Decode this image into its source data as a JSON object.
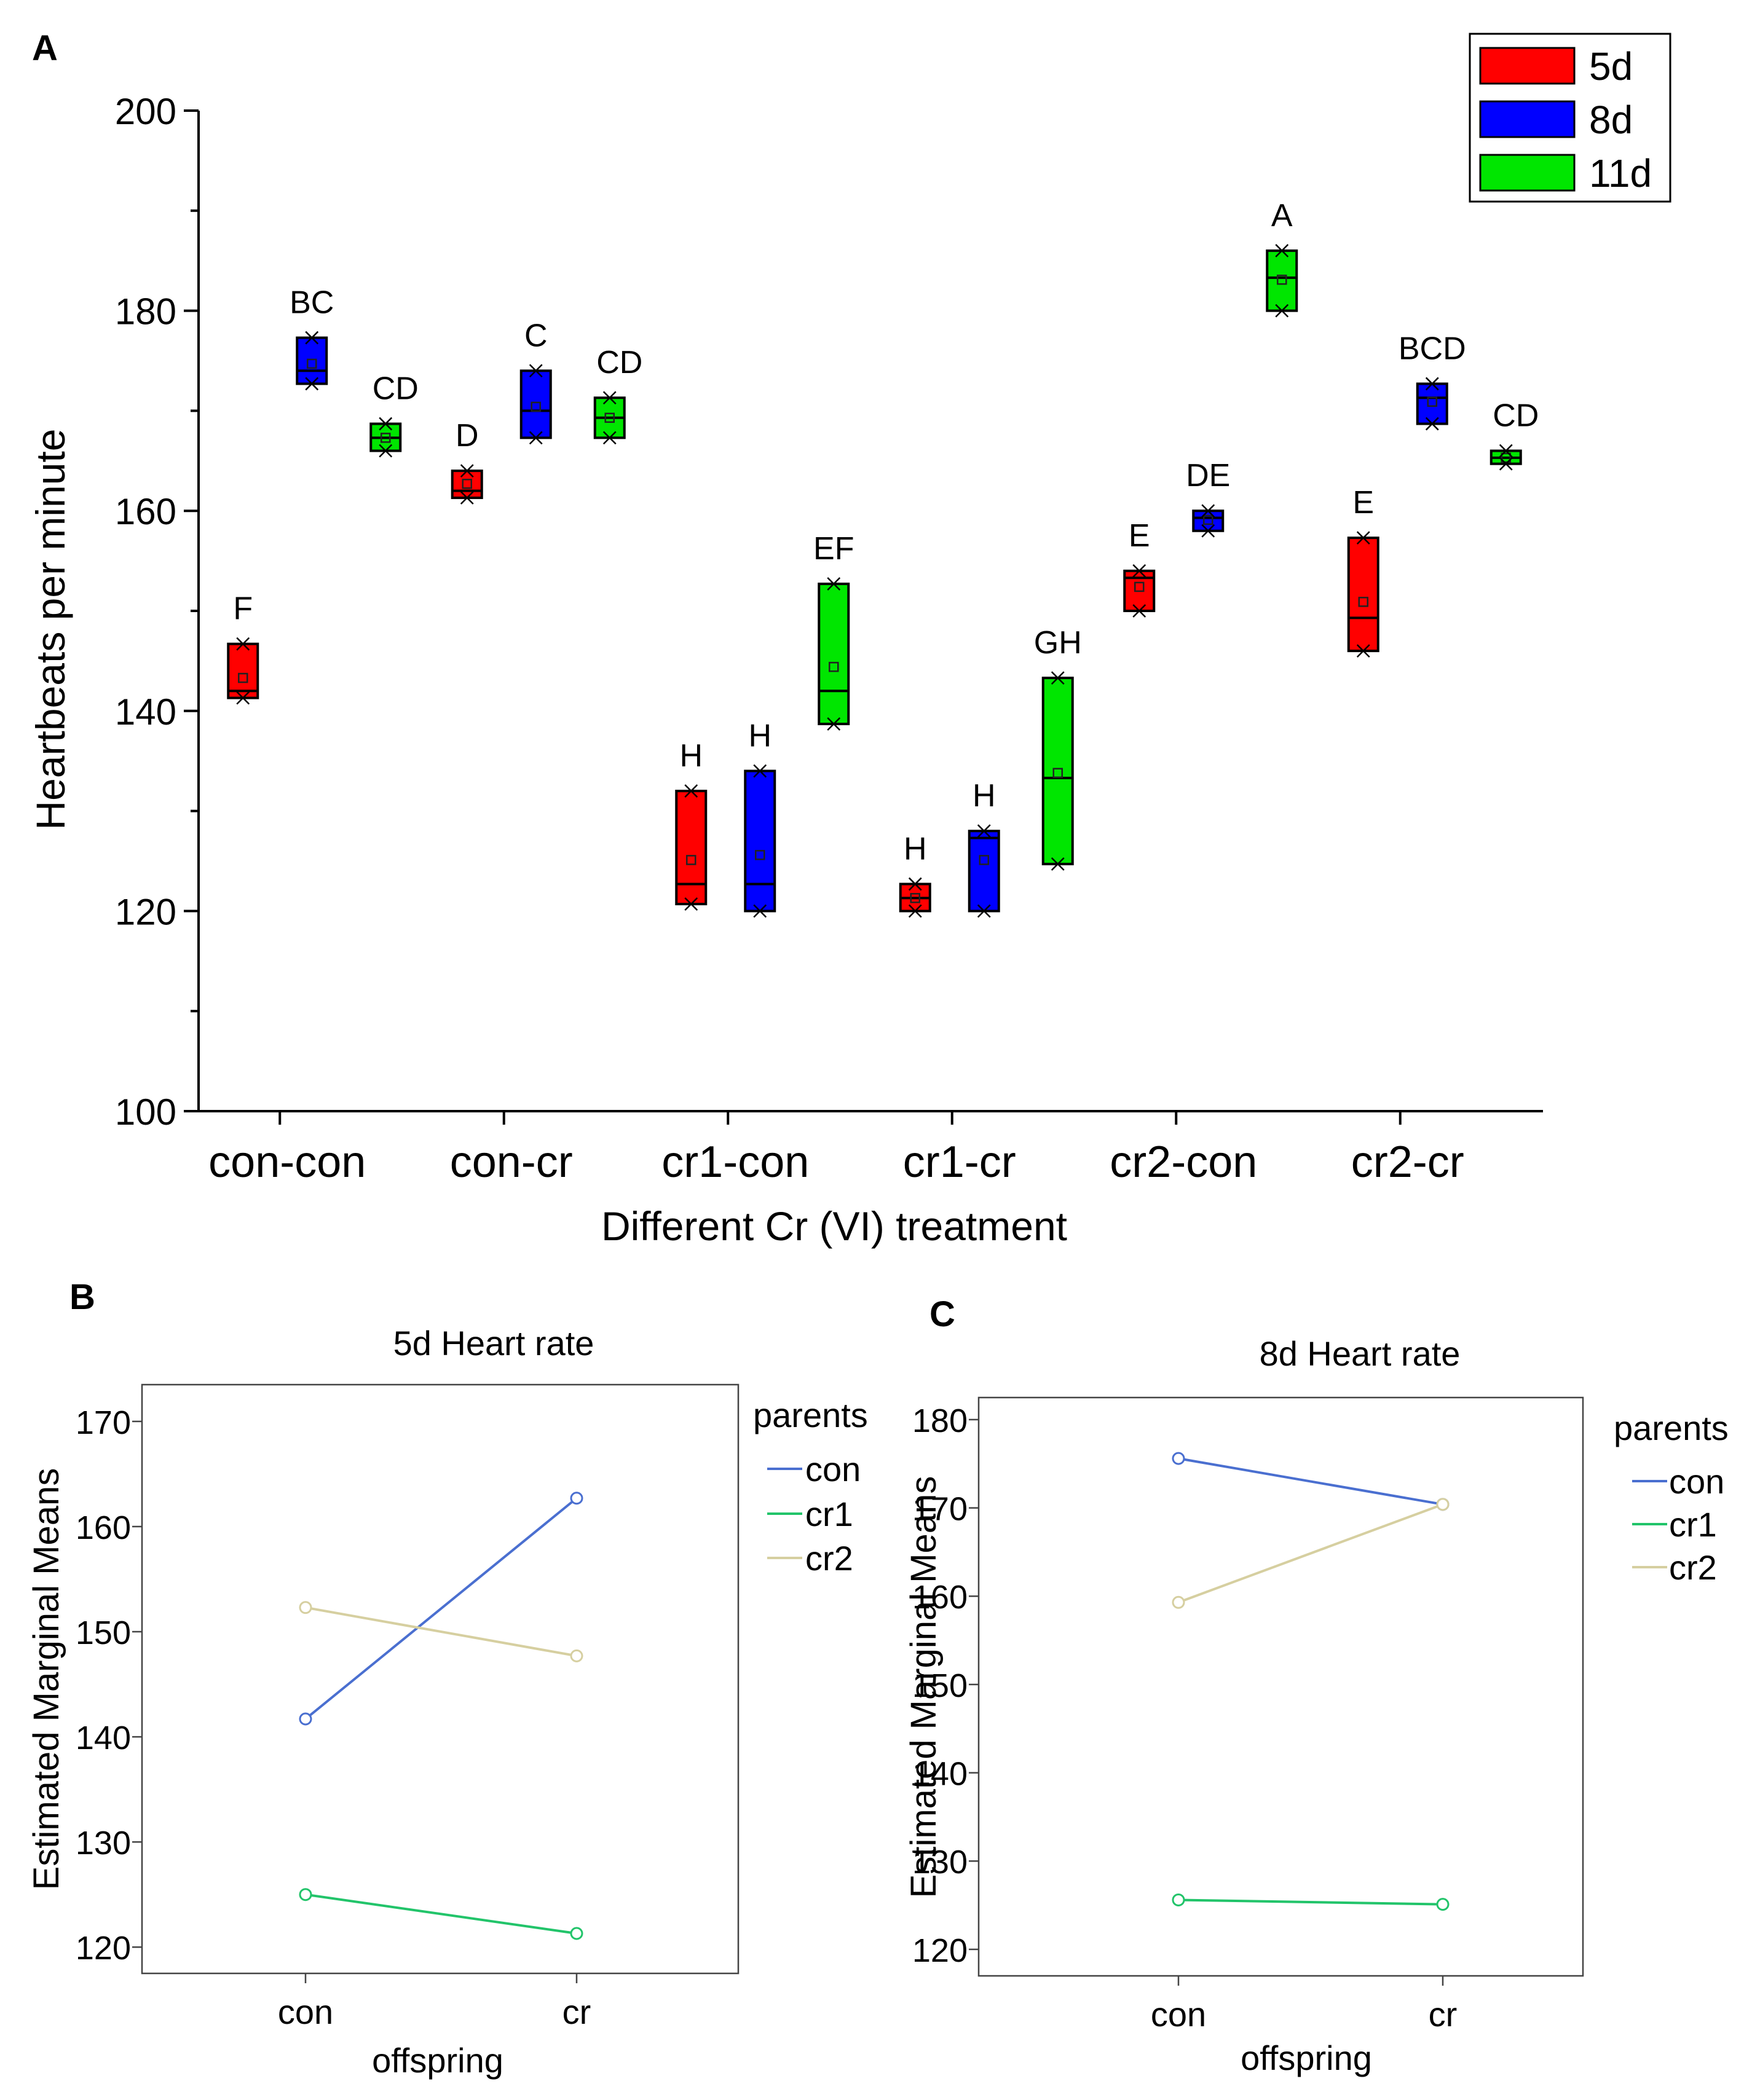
{
  "figure": {
    "panel_a_label": "A",
    "panel_b_label": "B",
    "panel_c_label": "C"
  },
  "colors": {
    "5d": "#ff0000",
    "8d": "#0000ff",
    "11d": "#00e600",
    "con": "#4a6fd0",
    "cr1": "#22c46a",
    "cr2": "#d6cfa0"
  },
  "chart_data": [
    {
      "type": "box",
      "panel": "A",
      "title": "",
      "xlabel": "Different Cr (VI) treatment",
      "ylabel": "Heartbeats per minute",
      "ylim": [
        100,
        200
      ],
      "yticks": [
        100,
        120,
        140,
        160,
        180,
        200
      ],
      "categories": [
        "con-con",
        "con-cr",
        "cr1-con",
        "cr1-cr",
        "cr2-con",
        "cr2-cr"
      ],
      "legend": {
        "position": "top-right",
        "entries": [
          "5d",
          "8d",
          "11d"
        ]
      },
      "series": [
        {
          "name": "5d",
          "boxes": [
            {
              "q1": 141.3,
              "median": 142.0,
              "q3": 146.7,
              "mean": 143.3,
              "min": 141.3,
              "max": 146.7,
              "label": "F"
            },
            {
              "q1": 161.3,
              "median": 162.0,
              "q3": 164.0,
              "mean": 162.7,
              "min": 161.3,
              "max": 164.0,
              "label": "D"
            },
            {
              "q1": 120.7,
              "median": 122.7,
              "q3": 132.0,
              "mean": 125.1,
              "min": 120.7,
              "max": 132.0,
              "label": "H"
            },
            {
              "q1": 120.0,
              "median": 121.3,
              "q3": 122.7,
              "mean": 121.3,
              "min": 120.0,
              "max": 122.7,
              "label": "H"
            },
            {
              "q1": 150.0,
              "median": 153.3,
              "q3": 154.0,
              "mean": 152.4,
              "min": 150.0,
              "max": 154.0,
              "label": "E"
            },
            {
              "q1": 146.0,
              "median": 149.3,
              "q3": 157.3,
              "mean": 150.9,
              "min": 146.0,
              "max": 157.3,
              "label": "E"
            }
          ]
        },
        {
          "name": "8d",
          "boxes": [
            {
              "q1": 172.7,
              "median": 174.0,
              "q3": 177.3,
              "mean": 174.7,
              "min": 172.7,
              "max": 177.3,
              "label": "BC"
            },
            {
              "q1": 167.3,
              "median": 170.0,
              "q3": 174.0,
              "mean": 170.4,
              "min": 167.3,
              "max": 174.0,
              "label": "C"
            },
            {
              "q1": 120.0,
              "median": 122.7,
              "q3": 134.0,
              "mean": 125.6,
              "min": 120.0,
              "max": 134.0,
              "label": "H"
            },
            {
              "q1": 120.0,
              "median": 127.3,
              "q3": 128.0,
              "mean": 125.1,
              "min": 120.0,
              "max": 128.0,
              "label": "H"
            },
            {
              "q1": 158.0,
              "median": 159.3,
              "q3": 160.0,
              "mean": 159.1,
              "min": 158.0,
              "max": 160.0,
              "label": "DE"
            },
            {
              "q1": 168.7,
              "median": 171.3,
              "q3": 172.7,
              "mean": 170.9,
              "min": 168.7,
              "max": 172.7,
              "label": "BCD"
            }
          ]
        },
        {
          "name": "11d",
          "boxes": [
            {
              "q1": 166.0,
              "median": 167.3,
              "q3": 168.7,
              "mean": 167.3,
              "min": 166.0,
              "max": 168.7,
              "label": "CD"
            },
            {
              "q1": 167.3,
              "median": 169.3,
              "q3": 171.3,
              "mean": 169.3,
              "min": 167.3,
              "max": 171.3,
              "label": "CD"
            },
            {
              "q1": 138.7,
              "median": 142.0,
              "q3": 152.7,
              "mean": 144.4,
              "min": 138.7,
              "max": 152.7,
              "label": "EF"
            },
            {
              "q1": 124.7,
              "median": 133.3,
              "q3": 143.3,
              "mean": 133.8,
              "min": 124.7,
              "max": 143.3,
              "label": "GH"
            },
            {
              "q1": 180.0,
              "median": 183.3,
              "q3": 186.0,
              "mean": 183.1,
              "min": 180.0,
              "max": 186.0,
              "label": "A"
            },
            {
              "q1": 164.7,
              "median": 165.3,
              "q3": 166.0,
              "mean": 165.3,
              "min": 164.7,
              "max": 166.0,
              "label": "CD"
            }
          ]
        }
      ]
    },
    {
      "type": "line",
      "panel": "B",
      "title": "5d Heart rate",
      "xlabel": "offspring",
      "ylabel": "Estimated Marginal Means",
      "ylim": [
        117.5,
        173.5
      ],
      "yticks": [
        120,
        130,
        140,
        150,
        160,
        170
      ],
      "categories": [
        "con",
        "cr"
      ],
      "legend": {
        "position": "right",
        "title": "parents",
        "entries": [
          "con",
          "cr1",
          "cr2"
        ]
      },
      "series": [
        {
          "name": "con",
          "values": [
            141.7,
            162.7
          ]
        },
        {
          "name": "cr1",
          "values": [
            125.0,
            121.3
          ]
        },
        {
          "name": "cr2",
          "values": [
            152.3,
            147.7
          ]
        }
      ]
    },
    {
      "type": "line",
      "panel": "C",
      "title": "8d Heart rate",
      "xlabel": "offspring",
      "ylabel": "Estimated Marginal Means",
      "ylim": [
        117.0,
        182.5
      ],
      "yticks": [
        120,
        130,
        140,
        150,
        160,
        170,
        180
      ],
      "categories": [
        "con",
        "cr"
      ],
      "legend": {
        "position": "right",
        "title": "parents",
        "entries": [
          "con",
          "cr1",
          "cr2"
        ]
      },
      "series": [
        {
          "name": "con",
          "values": [
            175.6,
            170.4
          ]
        },
        {
          "name": "cr1",
          "values": [
            125.6,
            125.1
          ]
        },
        {
          "name": "cr2",
          "values": [
            159.3,
            170.4
          ]
        }
      ]
    }
  ]
}
